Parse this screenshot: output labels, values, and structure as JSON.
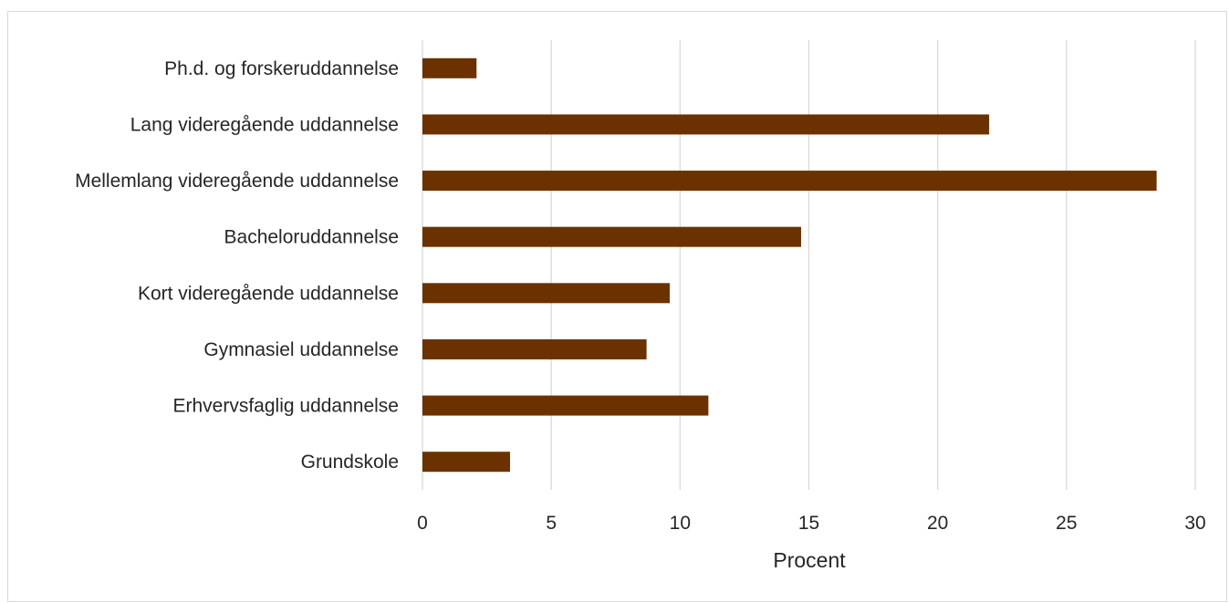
{
  "chart_data": {
    "type": "bar",
    "orientation": "horizontal",
    "categories": [
      "Ph.d. og forskeruddannelse",
      "Lang videregående uddannelse",
      "Mellemlang videregående uddannelse",
      "Bacheloruddannelse",
      "Kort videregående uddannelse",
      "Gymnasiel uddannelse",
      "Erhvervsfaglig uddannelse",
      "Grundskole"
    ],
    "values": [
      2.1,
      22.0,
      28.5,
      14.7,
      9.6,
      8.7,
      11.1,
      3.4
    ],
    "xlabel": "Procent",
    "ylabel": "",
    "title": "",
    "xlim": [
      0,
      30
    ],
    "xticks": [
      "0",
      "5",
      "10",
      "15",
      "20",
      "25",
      "30"
    ],
    "grid": "vertical",
    "legend": "none",
    "bar_color": "#6b3200",
    "grid_color": "#d9d9d9"
  }
}
